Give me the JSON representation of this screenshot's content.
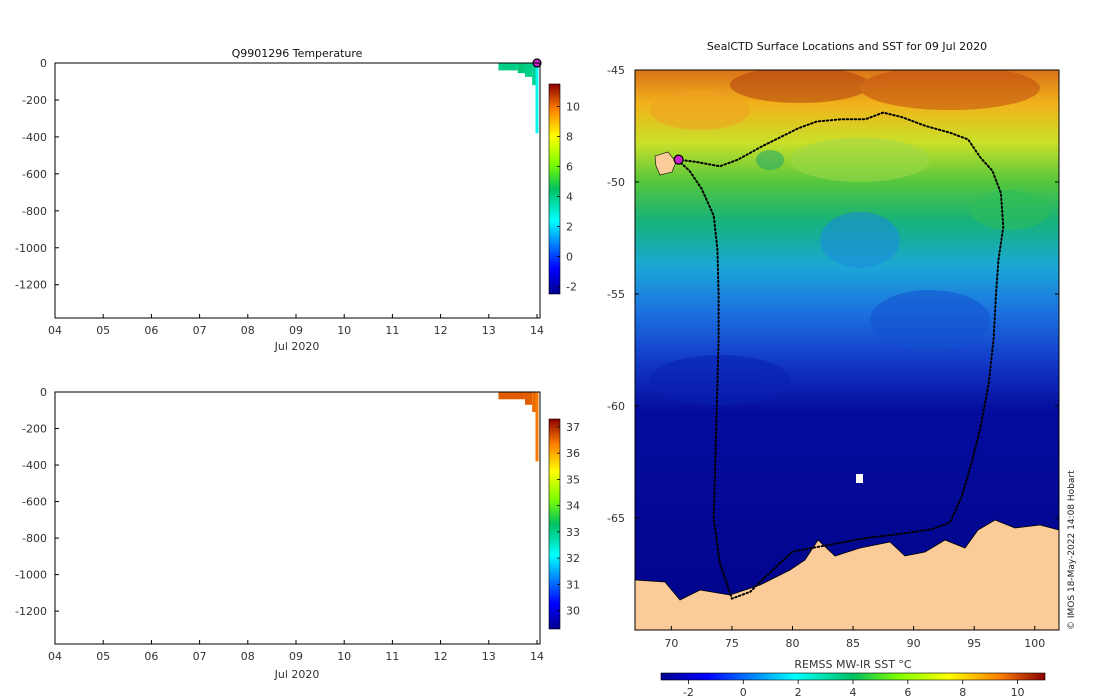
{
  "temperature_panel": {
    "title": "Q9901296  Temperature",
    "x_ticks": [
      "04",
      "05",
      "06",
      "07",
      "08",
      "09",
      "10",
      "11",
      "12",
      "13",
      "14"
    ],
    "x_label": "Jul 2020",
    "y_ticks": [
      "0",
      "-200",
      "-400",
      "-600",
      "-800",
      "-1000",
      "-1200"
    ],
    "colorbar_ticks": [
      "10",
      "8",
      "6",
      "4",
      "2",
      "0",
      "-2"
    ]
  },
  "salinity_panel": {
    "x_ticks": [
      "04",
      "05",
      "06",
      "07",
      "08",
      "09",
      "10",
      "11",
      "12",
      "13",
      "14"
    ],
    "x_label": "Jul 2020",
    "y_ticks": [
      "0",
      "-200",
      "-400",
      "-600",
      "-800",
      "-1000",
      "-1200"
    ],
    "colorbar_ticks": [
      "37",
      "36",
      "35",
      "34",
      "33",
      "32",
      "31",
      "30"
    ]
  },
  "map_panel": {
    "title": "SealCTD Surface Locations and SST for 09 Jul 2020",
    "lat_ticks": [
      "-45",
      "-50",
      "-55",
      "-60",
      "-65"
    ],
    "lon_ticks": [
      "70",
      "75",
      "80",
      "85",
      "90",
      "95",
      "100"
    ],
    "colorbar_label": "REMSS MW-IR SST °C",
    "colorbar_ticks": [
      "-2",
      "0",
      "2",
      "4",
      "6",
      "8",
      "10"
    ],
    "credit": "© IMOS 18-May-2022 14:08 Hobart"
  },
  "colors": {
    "land": "#FBCB9A",
    "track": "#000000",
    "current_position": "#CC22CC"
  },
  "chart_data": [
    {
      "type": "heatmap",
      "title": "Q9901296  Temperature",
      "xlabel": "Jul 2020",
      "ylabel": "",
      "x_range_days": [
        4,
        14
      ],
      "ylim": [
        -1380,
        0
      ],
      "colorbar_range": [
        -2.5,
        11.5
      ],
      "colorbar_ticks": [
        10,
        8,
        6,
        4,
        2,
        0,
        -2
      ],
      "profiles": [
        {
          "day": 13.2,
          "max_depth": 40,
          "value": 4.0
        },
        {
          "day": 13.6,
          "max_depth": 55,
          "value": 4.2
        },
        {
          "day": 13.75,
          "max_depth": 75,
          "value": 4.0
        },
        {
          "day": 13.9,
          "max_depth": 120,
          "value": 3.9
        },
        {
          "day": 14.0,
          "max_depth": 380,
          "value": 2.6
        }
      ],
      "current_surface_point": {
        "day": 14.0,
        "depth": 0
      }
    },
    {
      "type": "heatmap",
      "title": "",
      "xlabel": "Jul 2020",
      "ylabel": "",
      "x_range_days": [
        4,
        14
      ],
      "ylim": [
        -1380,
        0
      ],
      "colorbar_range": [
        29.3,
        37.3
      ],
      "colorbar_ticks": [
        37,
        36,
        35,
        34,
        33,
        32,
        31,
        30
      ],
      "profiles": [
        {
          "day": 13.2,
          "max_depth": 40,
          "value": 36.6
        },
        {
          "day": 13.75,
          "max_depth": 70,
          "value": 36.6
        },
        {
          "day": 13.9,
          "max_depth": 110,
          "value": 36.5
        },
        {
          "day": 14.0,
          "max_depth": 380,
          "value": 36.4
        }
      ]
    },
    {
      "type": "heatmap",
      "title": "SealCTD Surface Locations and SST for 09 Jul 2020",
      "xlabel": "",
      "ylabel": "",
      "xlim": [
        67,
        102
      ],
      "ylim": [
        -70,
        -45
      ],
      "colorbar_label": "REMSS MW-IR SST °C",
      "colorbar_range": [
        -3,
        11
      ],
      "colorbar_ticks": [
        -2,
        0,
        2,
        4,
        6,
        8,
        10
      ],
      "track_lonlat": [
        [
          70.5,
          -49.0
        ],
        [
          72,
          -49.1
        ],
        [
          74,
          -49.3
        ],
        [
          75.5,
          -49.0
        ],
        [
          77.5,
          -48.4
        ],
        [
          79,
          -48.0
        ],
        [
          80.5,
          -47.6
        ],
        [
          82,
          -47.3
        ],
        [
          84,
          -47.2
        ],
        [
          86,
          -47.2
        ],
        [
          87.5,
          -46.9
        ],
        [
          89,
          -47.1
        ],
        [
          91,
          -47.5
        ],
        [
          93,
          -47.8
        ],
        [
          94.5,
          -48.1
        ],
        [
          95.5,
          -48.9
        ],
        [
          96.5,
          -49.5
        ],
        [
          97.2,
          -50.5
        ],
        [
          97.4,
          -52
        ],
        [
          97.0,
          -53.5
        ],
        [
          96.8,
          -55
        ],
        [
          96.6,
          -57
        ],
        [
          96.2,
          -59
        ],
        [
          95.5,
          -61
        ],
        [
          94.8,
          -62.5
        ],
        [
          94.0,
          -64
        ],
        [
          93.0,
          -65.2
        ],
        [
          91.5,
          -65.5
        ],
        [
          89,
          -65.7
        ],
        [
          86,
          -65.9
        ],
        [
          83,
          -66.2
        ],
        [
          80,
          -66.5
        ],
        [
          78,
          -67.5
        ],
        [
          76.5,
          -68.3
        ],
        [
          75,
          -68.6
        ],
        [
          74.0,
          -67.0
        ],
        [
          73.5,
          -65.0
        ],
        [
          73.6,
          -63.0
        ],
        [
          73.7,
          -61.0
        ],
        [
          73.8,
          -59.0
        ],
        [
          73.9,
          -57.0
        ],
        [
          73.9,
          -55.0
        ],
        [
          73.8,
          -53.0
        ],
        [
          73.5,
          -51.5
        ],
        [
          72.5,
          -50.3
        ],
        [
          71.5,
          -49.5
        ],
        [
          70.5,
          -49.0
        ]
      ],
      "current_position": [
        70.6,
        -49.0
      ]
    }
  ]
}
